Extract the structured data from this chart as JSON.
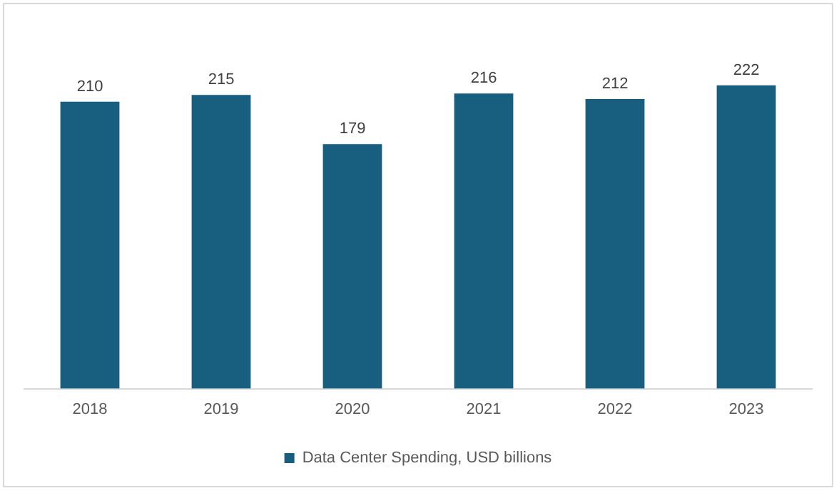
{
  "chart_data": {
    "type": "bar",
    "categories": [
      "2018",
      "2019",
      "2020",
      "2021",
      "2022",
      "2023"
    ],
    "series": [
      {
        "name": "Data Center Spending, USD billions",
        "color": "#175e7f",
        "values": [
          210,
          215,
          179,
          216,
          212,
          222
        ]
      }
    ],
    "data_labels": true,
    "legend": "bottom",
    "grid": false,
    "tick_labels": "x"
  }
}
